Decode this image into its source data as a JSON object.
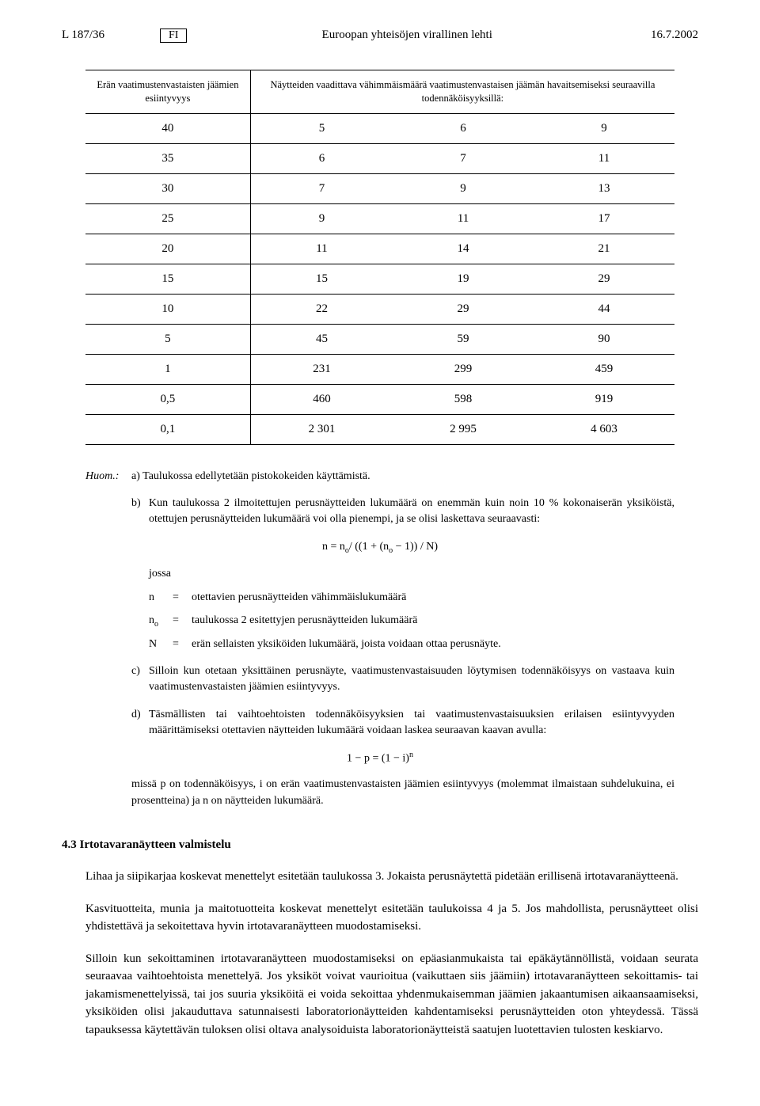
{
  "header": {
    "left": "L 187/36",
    "lang_box": "FI",
    "center": "Euroopan yhteisöjen virallinen lehti",
    "right": "16.7.2002"
  },
  "table": {
    "col_left_header": "Erän vaatimustenvastaisten jäämien esiintyvyys",
    "col_span_header": "Näytteiden vaadittava vähimmäismäärä vaatimustenvastaisen jäämän havaitsemiseksi seuraavilla todennäköisyyksillä:",
    "rows": [
      {
        "c0": "40",
        "c1": "5",
        "c2": "6",
        "c3": "9"
      },
      {
        "c0": "35",
        "c1": "6",
        "c2": "7",
        "c3": "11"
      },
      {
        "c0": "30",
        "c1": "7",
        "c2": "9",
        "c3": "13"
      },
      {
        "c0": "25",
        "c1": "9",
        "c2": "11",
        "c3": "17"
      },
      {
        "c0": "20",
        "c1": "11",
        "c2": "14",
        "c3": "21"
      },
      {
        "c0": "15",
        "c1": "15",
        "c2": "19",
        "c3": "29"
      },
      {
        "c0": "10",
        "c1": "22",
        "c2": "29",
        "c3": "44"
      },
      {
        "c0": "5",
        "c1": "45",
        "c2": "59",
        "c3": "90"
      },
      {
        "c0": "1",
        "c1": "231",
        "c2": "299",
        "c3": "459"
      },
      {
        "c0": "0,5",
        "c1": "460",
        "c2": "598",
        "c3": "919"
      },
      {
        "c0": "0,1",
        "c1": "2 301",
        "c2": "2 995",
        "c3": "4 603"
      }
    ]
  },
  "notes": {
    "huom_label": "Huom.:",
    "a_label": "a)",
    "a_text": "Taulukossa edellytetään pistokokeiden käyttämistä.",
    "b_label": "b)",
    "b_text": "Kun taulukossa 2 ilmoitettujen perusnäytteiden lukumäärä on enemmän kuin noin 10 % kokonaiserän yksiköistä, otettujen perusnäytteiden lukumäärä voi olla pienempi, ja se olisi laskettava seuraavasti:",
    "b_formula_prefix": "n = n",
    "b_formula_mid1": "/ ((1 + (n",
    "b_formula_mid2": " − 1)) / N)",
    "jossa": "jossa",
    "def_n_sym": "n",
    "def_n_txt": "otettavien perusnäytteiden vähimmäislukumäärä",
    "def_no_sym": "n",
    "def_no_txt": "taulukossa 2 esitettyjen perusnäytteiden lukumäärä",
    "def_N_sym": "N",
    "def_N_txt": "erän sellaisten yksiköiden lukumäärä, joista voidaan ottaa perusnäyte.",
    "eq": "=",
    "sub_o": "o",
    "c_label": "c)",
    "c_text": "Silloin kun otetaan yksittäinen perusnäyte, vaatimustenvastaisuuden löytymisen todennäköisyys on vastaava kuin vaatimustenvastaisten jäämien esiintyvyys.",
    "d_label": "d)",
    "d_text": "Täsmällisten tai vaihtoehtoisten todennäköisyyksien tai vaatimustenvastaisuuksien erilaisen esiintyvyyden määrittämiseksi otettavien näytteiden lukumäärä voidaan laskea seuraavan kaavan avulla:",
    "d_formula": "1 − p = (1 − i)",
    "d_formula_sup": "n",
    "d_tail": "missä p on todennäköisyys, i on erän vaatimustenvastaisten jäämien esiintyvyys (molemmat ilmaistaan suhdelukuina, ei prosentteina) ja n on näytteiden lukumäärä."
  },
  "section": {
    "heading": "4.3 Irtotavaranäytteen valmistelu",
    "p1": "Lihaa ja siipikarjaa koskevat menettelyt esitetään taulukossa 3. Jokaista perusnäytettä pidetään erillisenä irtotavaranäytteenä.",
    "p2": "Kasvituotteita, munia ja maitotuotteita koskevat menettelyt esitetään taulukoissa 4 ja 5. Jos mahdollista, perusnäytteet olisi yhdistettävä ja sekoitettava hyvin irtotavaranäytteen muodostamiseksi.",
    "p3": "Silloin kun sekoittaminen irtotavaranäytteen muodostamiseksi on epäasianmukaista tai epäkäytännöllistä, voidaan seurata seuraavaa vaihtoehtoista menettelyä. Jos yksiköt voivat vaurioitua (vaikuttaen siis jäämiin) irtotavaranäytteen sekoittamis- tai jakamismenettelyissä, tai jos suuria yksiköitä ei voida sekoittaa yhdenmukaisemman jäämien jakaantumisen aikaansaamiseksi, yksiköiden olisi jakauduttava satunnaisesti laboratorionäytteiden kahdentamiseksi perusnäytteiden oton yhteydessä. Tässä tapauksessa käytettävän tuloksen olisi oltava analysoiduista laboratorionäytteistä saatujen luotettavien tulosten keskiarvo."
  }
}
